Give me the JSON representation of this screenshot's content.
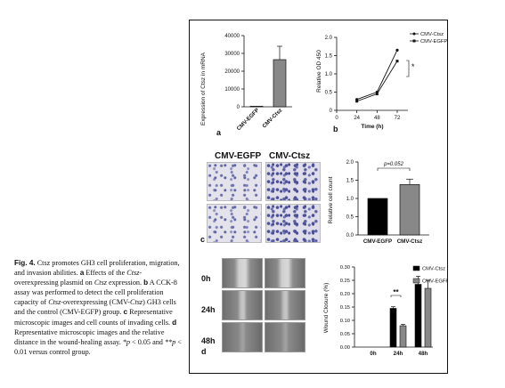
{
  "caption": {
    "fig_label": "Fig. 4.",
    "intro": " Ctsz promotes GH3 cell proliferation, migration, and invasion abilities. ",
    "a_label": "a",
    "a_text_1": " Effects of the ",
    "a_gene": "Ctsz",
    "a_text_2": "-overexpressing plasmid on ",
    "a_gene2": "Ctsz",
    "a_text_3": " expression. ",
    "b_label": "b",
    "b_text_1": " A CCK-8 assay was performed to detect the cell proliferation capacity of ",
    "b_gene": "Ctsz",
    "b_text_2": "-overexpressing (CMV-",
    "b_gene2": "Ctsz",
    "b_text_3": ") GH3 cells and the control (CMV-EGFP) group. ",
    "c_label": "c",
    "c_text": " Representative microscopic images and cell counts of invading cells. ",
    "d_label": "d",
    "d_text": " Representative microscopic images and the relative distance in the wound-healing assay. ",
    "p1": "*p",
    "p1_text": " < 0.05 and ",
    "p2": "**p",
    "p2_text": " < 0.01 versus control group."
  },
  "panel_letters": {
    "a": "a",
    "b": "b",
    "c": "c",
    "d": "d"
  },
  "panel_c": {
    "col1": "CMV-EGFP",
    "col2": "CMV-Ctsz"
  },
  "panel_d": {
    "rows": [
      "0h",
      "24h",
      "48h"
    ]
  },
  "chart_data": [
    {
      "panel": "a",
      "type": "bar",
      "categories": [
        "CMV-EGFP",
        "CMV-Ctsz"
      ],
      "values": [
        300,
        26500
      ],
      "errors": [
        0,
        7500
      ],
      "ylabel": "Expression of Ctsz in mRNA",
      "ylim": [
        0,
        40000
      ],
      "yticks": [
        "0",
        "10000",
        "20000",
        "30000",
        "40000"
      ],
      "colors": [
        "#888888",
        "#888888"
      ]
    },
    {
      "panel": "b",
      "type": "line",
      "x": [
        24,
        48,
        72
      ],
      "xticks": [
        "0",
        "24",
        "48",
        "72"
      ],
      "xlabel": "Time (h)",
      "ylabel": "Relative OD 450",
      "ylim": [
        0,
        2.0
      ],
      "yticks": [
        "0",
        "0.5",
        "1.0",
        "1.5",
        "2.0"
      ],
      "series": [
        {
          "name": "CMV-Ctsz",
          "values": [
            0.3,
            0.5,
            1.65
          ],
          "marker": "circle"
        },
        {
          "name": "CMV-EGFP",
          "values": [
            0.25,
            0.45,
            1.35
          ],
          "marker": "square"
        }
      ],
      "annotation": "*",
      "legend": "top-right"
    },
    {
      "panel": "c",
      "type": "bar",
      "categories": [
        "CMV-EGFP",
        "CMV-Ctsz"
      ],
      "values": [
        1.0,
        1.38
      ],
      "errors": [
        0,
        0.15
      ],
      "ylabel": "Relative cell count",
      "ylim": [
        0,
        2.0
      ],
      "yticks": [
        "0.0",
        "0.5",
        "1.0",
        "1.5",
        "2.0"
      ],
      "annotation": "p=0.052",
      "colors": [
        "#000000",
        "#888888"
      ]
    },
    {
      "panel": "d",
      "type": "bar",
      "categories": [
        "0h",
        "24h",
        "48h"
      ],
      "series": [
        {
          "name": "CMV-Ctsz",
          "values": [
            0,
            0.145,
            0.235
          ],
          "errors": [
            0,
            0.006,
            0.03
          ]
        },
        {
          "name": "CMV-EGFP",
          "values": [
            0,
            0.08,
            0.22
          ],
          "errors": [
            0,
            0.005,
            0.03
          ]
        }
      ],
      "ylabel": "Wound Closure (%)",
      "ylim": [
        0,
        0.3
      ],
      "yticks": [
        "0.00",
        "0.05",
        "0.10",
        "0.15",
        "0.20",
        "0.25",
        "0.30"
      ],
      "annotation": "**",
      "legend": "top-right",
      "colors": [
        "#000000",
        "#888888"
      ]
    }
  ]
}
